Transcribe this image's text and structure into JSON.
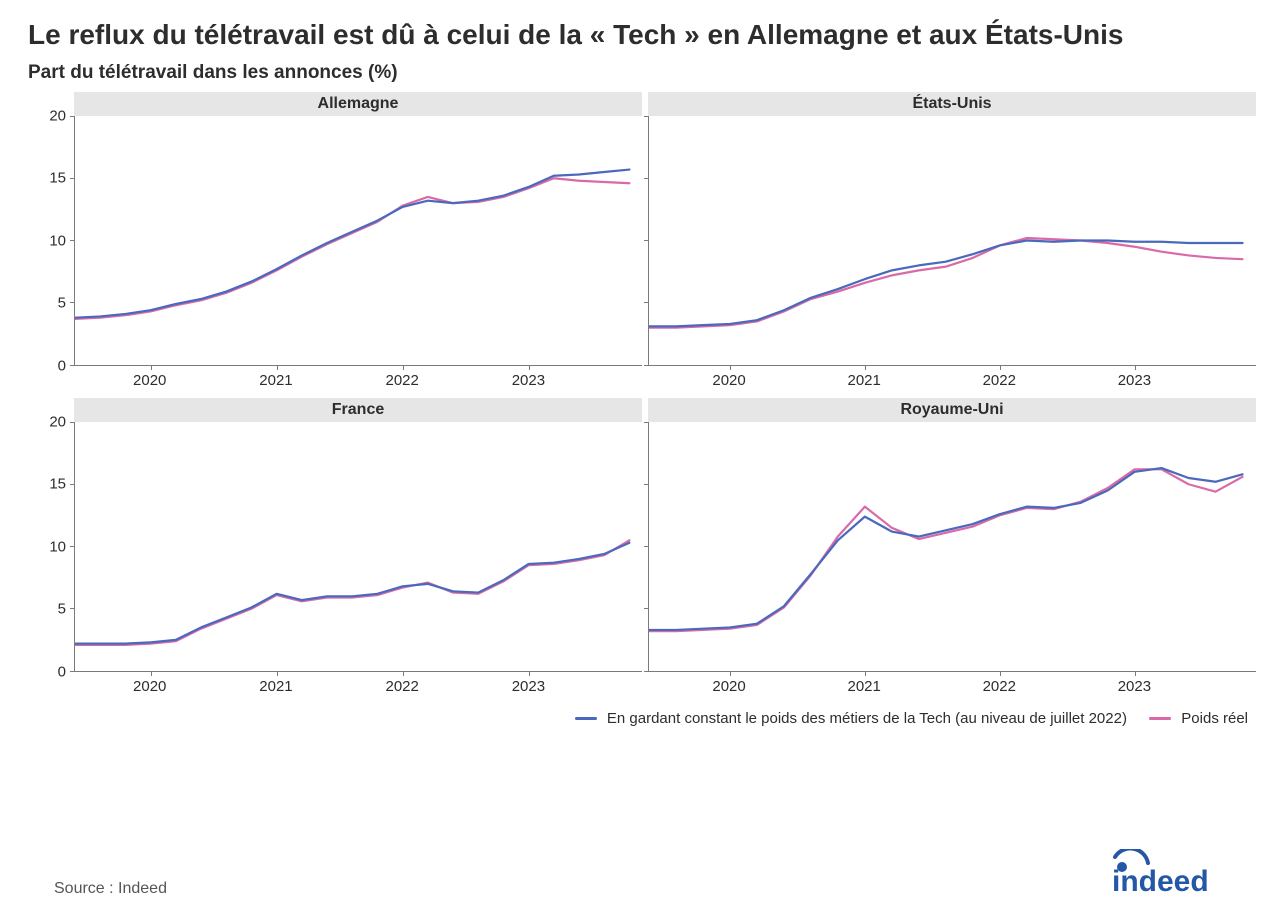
{
  "title": "Le reflux du télétravail est dû à celui de la « Tech » en Allemagne et aux États-Unis",
  "subtitle": "Part du télétravail dans les annonces (%)",
  "source": "Source : Indeed",
  "logo_text": "indeed",
  "logo_color": "#2557a7",
  "legend": {
    "series1": {
      "label": "En gardant constant le poids des métiers de la Tech (au niveau de juillet 2022)",
      "color": "#4a69bd"
    },
    "series2": {
      "label": "Poids réel",
      "color": "#d96aa7"
    }
  },
  "axes": {
    "ylim": [
      0,
      20
    ],
    "yticks": [
      0,
      5,
      10,
      15,
      20
    ],
    "xlim": [
      2019.4,
      2023.9
    ],
    "xticks": [
      2020,
      2021,
      2022,
      2023
    ],
    "xtick_labels": [
      "2020",
      "2021",
      "2022",
      "2023"
    ],
    "label_fontsize": 15,
    "axis_color": "#7a7a7a"
  },
  "style": {
    "line_width": 2.2,
    "panel_title_bg": "#e6e6e6",
    "panel_title_fontsize": 16,
    "background_color": "#ffffff"
  },
  "panels": [
    {
      "name": "Allemagne",
      "x": [
        2019.4,
        2019.6,
        2019.8,
        2020.0,
        2020.2,
        2020.4,
        2020.6,
        2020.8,
        2021.0,
        2021.2,
        2021.4,
        2021.6,
        2021.8,
        2022.0,
        2022.2,
        2022.4,
        2022.6,
        2022.8,
        2023.0,
        2023.2,
        2023.4,
        2023.6,
        2023.8
      ],
      "constant": [
        3.8,
        3.9,
        4.1,
        4.4,
        4.9,
        5.3,
        5.9,
        6.7,
        7.7,
        8.8,
        9.8,
        10.7,
        11.6,
        12.7,
        13.2,
        13.0,
        13.2,
        13.6,
        14.3,
        15.2,
        15.3,
        15.5,
        15.7
      ],
      "real": [
        3.7,
        3.8,
        4.0,
        4.3,
        4.8,
        5.2,
        5.8,
        6.6,
        7.6,
        8.7,
        9.7,
        10.6,
        11.5,
        12.8,
        13.5,
        13.0,
        13.1,
        13.5,
        14.2,
        15.0,
        14.8,
        14.7,
        14.6
      ]
    },
    {
      "name": "États-Unis",
      "x": [
        2019.4,
        2019.6,
        2019.8,
        2020.0,
        2020.2,
        2020.4,
        2020.6,
        2020.8,
        2021.0,
        2021.2,
        2021.4,
        2021.6,
        2021.8,
        2022.0,
        2022.2,
        2022.4,
        2022.6,
        2022.8,
        2023.0,
        2023.2,
        2023.4,
        2023.6,
        2023.8
      ],
      "constant": [
        3.1,
        3.1,
        3.2,
        3.3,
        3.6,
        4.4,
        5.4,
        6.1,
        6.9,
        7.6,
        8.0,
        8.3,
        8.9,
        9.6,
        10.0,
        9.9,
        10.0,
        10.0,
        9.9,
        9.9,
        9.8,
        9.8,
        9.8
      ],
      "real": [
        3.0,
        3.0,
        3.1,
        3.2,
        3.5,
        4.3,
        5.3,
        5.9,
        6.6,
        7.2,
        7.6,
        7.9,
        8.6,
        9.6,
        10.2,
        10.1,
        10.0,
        9.8,
        9.5,
        9.1,
        8.8,
        8.6,
        8.5
      ]
    },
    {
      "name": "France",
      "x": [
        2019.4,
        2019.6,
        2019.8,
        2020.0,
        2020.2,
        2020.4,
        2020.6,
        2020.8,
        2021.0,
        2021.2,
        2021.4,
        2021.6,
        2021.8,
        2022.0,
        2022.2,
        2022.4,
        2022.6,
        2022.8,
        2023.0,
        2023.2,
        2023.4,
        2023.6,
        2023.8
      ],
      "constant": [
        2.2,
        2.2,
        2.2,
        2.3,
        2.5,
        3.5,
        4.3,
        5.1,
        6.2,
        5.7,
        6.0,
        6.0,
        6.2,
        6.8,
        7.0,
        6.4,
        6.3,
        7.3,
        8.6,
        8.7,
        9.0,
        9.4,
        10.3
      ],
      "real": [
        2.1,
        2.1,
        2.1,
        2.2,
        2.4,
        3.4,
        4.2,
        5.0,
        6.1,
        5.6,
        5.9,
        5.9,
        6.1,
        6.7,
        7.1,
        6.3,
        6.2,
        7.2,
        8.5,
        8.6,
        8.9,
        9.3,
        10.5
      ]
    },
    {
      "name": "Royaume-Uni",
      "x": [
        2019.4,
        2019.6,
        2019.8,
        2020.0,
        2020.2,
        2020.4,
        2020.6,
        2020.8,
        2021.0,
        2021.2,
        2021.4,
        2021.6,
        2021.8,
        2022.0,
        2022.2,
        2022.4,
        2022.6,
        2022.8,
        2023.0,
        2023.2,
        2023.4,
        2023.6,
        2023.8
      ],
      "constant": [
        3.3,
        3.3,
        3.4,
        3.5,
        3.8,
        5.2,
        7.8,
        10.5,
        12.4,
        11.2,
        10.8,
        11.3,
        11.8,
        12.6,
        13.2,
        13.1,
        13.5,
        14.5,
        16.0,
        16.3,
        15.5,
        15.2,
        15.8
      ],
      "real": [
        3.2,
        3.2,
        3.3,
        3.4,
        3.7,
        5.1,
        7.7,
        10.8,
        13.2,
        11.5,
        10.6,
        11.1,
        11.6,
        12.5,
        13.1,
        13.0,
        13.6,
        14.7,
        16.2,
        16.2,
        15.0,
        14.4,
        15.6
      ]
    }
  ]
}
